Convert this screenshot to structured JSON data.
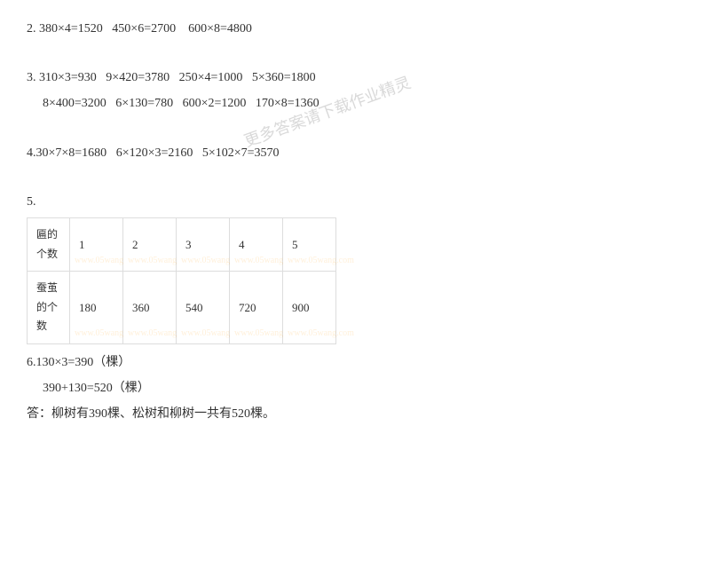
{
  "watermarks": {
    "wm1": "更多答案请下载作业精灵",
    "wm2": "载作业精灵"
  },
  "section2": {
    "label": "2.",
    "eq1": "380×4=1520",
    "eq2": "450×6=2700",
    "eq3": "600×8=4800"
  },
  "section3": {
    "label": "3.",
    "eq1": "310×3=930",
    "eq2": "9×420=3780",
    "eq3": "250×4=1000",
    "eq4": "5×360=1800",
    "eq5": "8×400=3200",
    "eq6": "6×130=780",
    "eq7": "600×2=1200",
    "eq8": "170×8=1360"
  },
  "section4": {
    "label": "4.",
    "eq1": "30×7×8=1680",
    "eq2": "6×120×3=2160",
    "eq3": "5×102×7=3570"
  },
  "section5": {
    "label": "5.",
    "table": {
      "row1_header": "匾的个数",
      "row1_cells": [
        "1",
        "2",
        "3",
        "4",
        "5"
      ],
      "row2_header": "蚕茧的个数",
      "row2_cells": [
        "180",
        "360",
        "540",
        "720",
        "900"
      ],
      "cell_wm": "www.05wang.com",
      "logo_wm": "零五网"
    }
  },
  "section6": {
    "label": "6.",
    "line1": "130×3=390（棵）",
    "line2": "390+130=520（棵）",
    "answer": "答：柳树有390棵、松树和柳树一共有520棵。"
  }
}
